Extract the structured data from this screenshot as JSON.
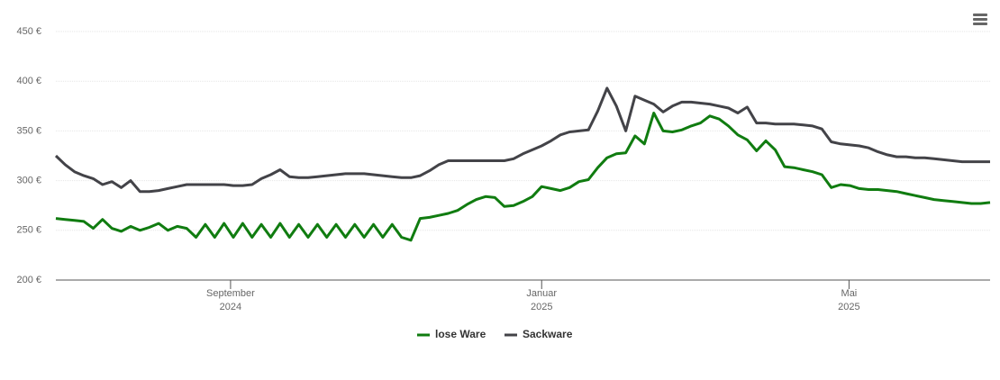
{
  "chart_data": {
    "type": "line",
    "x": [
      2024.48,
      2024.49,
      2024.5,
      2024.51,
      2024.52,
      2024.53,
      2024.54,
      2024.55,
      2024.56,
      2024.57,
      2024.58,
      2024.59,
      2024.6,
      2024.61,
      2024.62,
      2024.63,
      2024.64,
      2024.65,
      2024.66,
      2024.67,
      2024.68,
      2024.69,
      2024.7,
      2024.71,
      2024.72,
      2024.73,
      2024.74,
      2024.75,
      2024.76,
      2024.77,
      2024.78,
      2024.79,
      2024.8,
      2024.81,
      2024.82,
      2024.83,
      2024.84,
      2024.85,
      2024.86,
      2024.87,
      2024.88,
      2024.89,
      2024.9,
      2024.91,
      2024.92,
      2024.93,
      2024.94,
      2024.95,
      2024.96,
      2024.97,
      2024.98,
      2024.99,
      2025.0,
      2025.01,
      2025.02,
      2025.03,
      2025.04,
      2025.05,
      2025.06,
      2025.07,
      2025.08,
      2025.09,
      2025.1,
      2025.11,
      2025.12,
      2025.13,
      2025.14,
      2025.15,
      2025.16,
      2025.17,
      2025.18,
      2025.19,
      2025.2,
      2025.21,
      2025.22,
      2025.23,
      2025.24,
      2025.25,
      2025.26,
      2025.27,
      2025.28,
      2025.29,
      2025.3,
      2025.31,
      2025.32,
      2025.33,
      2025.34,
      2025.35,
      2025.36,
      2025.37,
      2025.38,
      2025.39,
      2025.4,
      2025.41,
      2025.42,
      2025.43,
      2025.44,
      2025.45,
      2025.46,
      2025.47,
      2025.48
    ],
    "series": [
      {
        "name": "lose Ware",
        "color": "#107c10",
        "values": [
          262,
          261,
          260,
          259,
          252,
          261,
          252,
          249,
          254,
          250,
          253,
          257,
          250,
          254,
          252,
          243,
          256,
          243,
          257,
          243,
          257,
          243,
          256,
          243,
          257,
          243,
          256,
          243,
          256,
          243,
          256,
          243,
          256,
          243,
          256,
          243,
          256,
          243,
          240,
          262,
          263,
          265,
          267,
          270,
          276,
          281,
          284,
          283,
          274,
          275,
          279,
          284,
          294,
          292,
          290,
          293,
          299,
          301,
          313,
          323,
          327,
          328,
          345,
          337,
          368,
          350,
          349,
          351,
          355,
          358,
          365,
          362,
          355,
          346,
          341,
          330,
          340,
          331,
          314,
          313,
          311,
          309,
          306,
          293,
          296,
          295,
          292,
          291,
          291,
          290,
          289,
          287,
          285,
          283,
          281,
          280,
          279,
          278,
          277,
          277,
          278
        ]
      },
      {
        "name": "Sackware",
        "color": "#434348",
        "values": [
          325,
          316,
          309,
          305,
          302,
          296,
          299,
          293,
          300,
          289,
          289,
          290,
          292,
          294,
          296,
          296,
          296,
          296,
          296,
          295,
          295,
          296,
          302,
          306,
          311,
          304,
          303,
          303,
          304,
          305,
          306,
          307,
          307,
          307,
          306,
          305,
          304,
          303,
          303,
          305,
          310,
          316,
          320,
          320,
          320,
          320,
          320,
          320,
          320,
          322,
          327,
          331,
          335,
          340,
          346,
          349,
          350,
          351,
          370,
          393,
          375,
          350,
          385,
          381,
          377,
          369,
          375,
          379,
          379,
          378,
          377,
          375,
          373,
          368,
          374,
          358,
          358,
          357,
          357,
          357,
          356,
          355,
          352,
          339,
          337,
          336,
          335,
          333,
          329,
          326,
          324,
          324,
          323,
          323,
          322,
          321,
          320,
          319,
          319,
          319,
          319
        ]
      }
    ],
    "xlim": [
      2024.48,
      2025.48
    ],
    "xticks": [
      {
        "value": 2024.667,
        "label": "September",
        "year": "2024"
      },
      {
        "value": 2025.0,
        "label": "Januar",
        "year": "2025"
      },
      {
        "value": 2025.329,
        "label": "Mai",
        "year": "2025"
      }
    ],
    "ylim": [
      200,
      450
    ],
    "yticks": [
      {
        "value": 200,
        "label": "200 €"
      },
      {
        "value": 250,
        "label": "250 €"
      },
      {
        "value": 300,
        "label": "300 €"
      },
      {
        "value": 350,
        "label": "350 €"
      },
      {
        "value": 400,
        "label": "400 €"
      },
      {
        "value": 450,
        "label": "450 €"
      }
    ],
    "grid": true
  }
}
